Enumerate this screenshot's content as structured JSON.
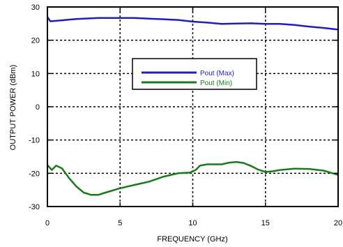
{
  "chart_data": {
    "type": "line",
    "title": "",
    "xlabel": "FREQUENCY (GHz)",
    "ylabel": "OUTPUT POWER (dBm)",
    "xlim": [
      0,
      20
    ],
    "ylim": [
      -30,
      30
    ],
    "xticks": [
      0,
      5,
      10,
      15,
      20
    ],
    "yticks": [
      -30,
      -20,
      -10,
      0,
      10,
      20,
      30
    ],
    "grid": true,
    "grid_style": "dashed",
    "legend_position": "center",
    "series": [
      {
        "name": "Pout (Max)",
        "color": "#1f1fbf",
        "x": [
          0.0,
          0.2,
          0.5,
          1.0,
          1.5,
          2.0,
          2.5,
          3.0,
          3.5,
          4.0,
          5.0,
          6.0,
          7.0,
          8.0,
          9.0,
          10.0,
          11.0,
          12.0,
          13.0,
          14.0,
          15.0,
          16.0,
          17.0,
          18.0,
          19.0,
          20.0
        ],
        "y": [
          27.0,
          25.7,
          25.8,
          26.0,
          26.2,
          26.4,
          26.5,
          26.6,
          26.7,
          26.7,
          26.7,
          26.7,
          26.5,
          26.3,
          26.1,
          25.6,
          25.3,
          24.9,
          25.0,
          25.1,
          24.9,
          24.9,
          24.6,
          24.1,
          23.7,
          23.2
        ]
      },
      {
        "name": "Pout (Min)",
        "color": "#1a7a1a",
        "x": [
          0.0,
          0.3,
          0.6,
          1.0,
          1.5,
          2.0,
          2.5,
          3.0,
          3.5,
          4.0,
          5.0,
          6.0,
          7.0,
          8.0,
          9.0,
          9.8,
          10.2,
          10.5,
          11.0,
          12.0,
          12.5,
          13.0,
          13.5,
          14.0,
          14.5,
          15.0,
          15.5,
          16.0,
          17.0,
          18.0,
          19.0,
          20.0
        ],
        "y": [
          -17.5,
          -19.0,
          -17.7,
          -18.5,
          -21.5,
          -24.0,
          -25.8,
          -26.5,
          -26.5,
          -25.8,
          -24.5,
          -23.5,
          -22.5,
          -21.0,
          -20.0,
          -19.8,
          -19.0,
          -17.7,
          -17.3,
          -17.3,
          -16.8,
          -16.6,
          -16.9,
          -17.8,
          -18.9,
          -19.6,
          -19.4,
          -19.0,
          -18.6,
          -18.7,
          -19.2,
          -20.5
        ]
      }
    ]
  }
}
